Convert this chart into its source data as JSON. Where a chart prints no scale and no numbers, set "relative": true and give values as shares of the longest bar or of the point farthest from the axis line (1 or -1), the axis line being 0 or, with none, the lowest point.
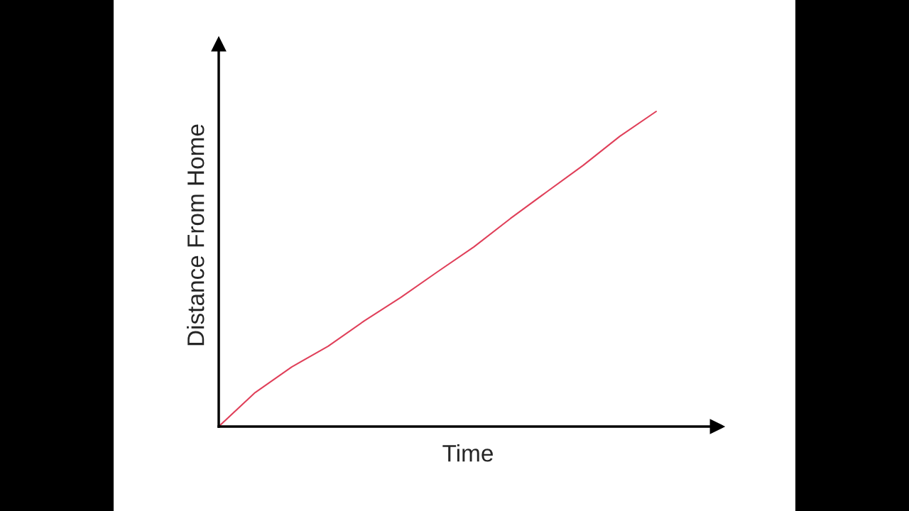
{
  "chart_data": {
    "type": "line",
    "relative": true,
    "xlabel": "Time",
    "ylabel": "Distance From Home",
    "categories": [
      null,
      null,
      null,
      null,
      null,
      null,
      null,
      null,
      null,
      null,
      null,
      null,
      null
    ],
    "series": [
      {
        "color": "#e0405a",
        "values": [
          0,
          0.108,
          0.189,
          0.255,
          0.336,
          0.41,
          0.491,
          0.57,
          0.66,
          0.745,
          0.829,
          0.921,
          1
        ]
      }
    ],
    "grid": false,
    "legend": false,
    "marker": "none",
    "line_style": "solid",
    "tick_labels": false
  }
}
